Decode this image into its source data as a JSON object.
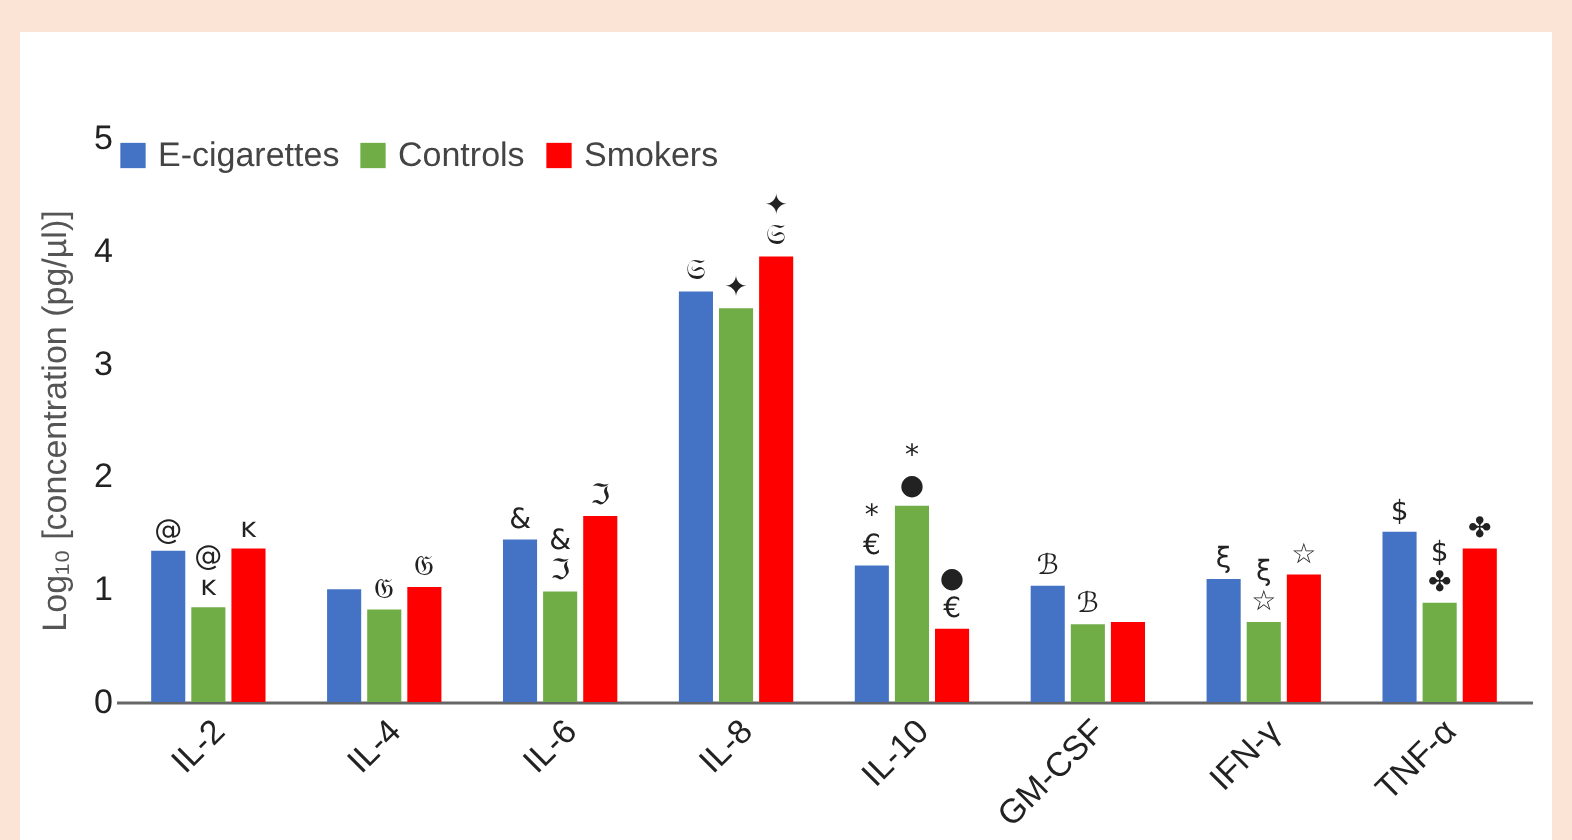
{
  "chart_data": {
    "type": "bar",
    "ylabel": "Log₁₀ [concentration (pg/µl)]",
    "categories": [
      "IL-2",
      "IL-4",
      "IL-6",
      "IL-8",
      "IL-10",
      "GM-CSF",
      "IFN-γ",
      "TNF-α"
    ],
    "series": [
      {
        "name": "E-cigarettes",
        "color": "#4472c4",
        "values": [
          1.34,
          1.0,
          1.44,
          3.64,
          1.21,
          1.03,
          1.09,
          1.51
        ],
        "value_labels": [
          "@",
          null,
          "&",
          "𝔖",
          "*\n€",
          "ℬ",
          "ξ",
          "$"
        ]
      },
      {
        "name": "Controls",
        "color": "#70ad47",
        "values": [
          0.84,
          0.82,
          0.98,
          3.49,
          1.74,
          0.69,
          0.71,
          0.88
        ],
        "value_labels": [
          "@\nĸ",
          "𝔊",
          "&\nℑ",
          "✦",
          "*\n●",
          "ℬ",
          "ξ\n☆",
          "$\n✤"
        ]
      },
      {
        "name": "Smokers",
        "color": "#ff0000",
        "values": [
          1.36,
          1.02,
          1.65,
          3.95,
          0.65,
          0.71,
          1.13,
          1.36
        ],
        "value_labels": [
          "ĸ",
          "𝔊",
          "ℑ",
          "✦\n𝔖",
          "●\n€",
          null,
          "☆",
          "✤"
        ]
      }
    ],
    "ylim": [
      0,
      5
    ],
    "yticks": [
      0,
      1,
      2,
      3,
      4,
      5
    ],
    "grid": false,
    "legend": "top left"
  }
}
